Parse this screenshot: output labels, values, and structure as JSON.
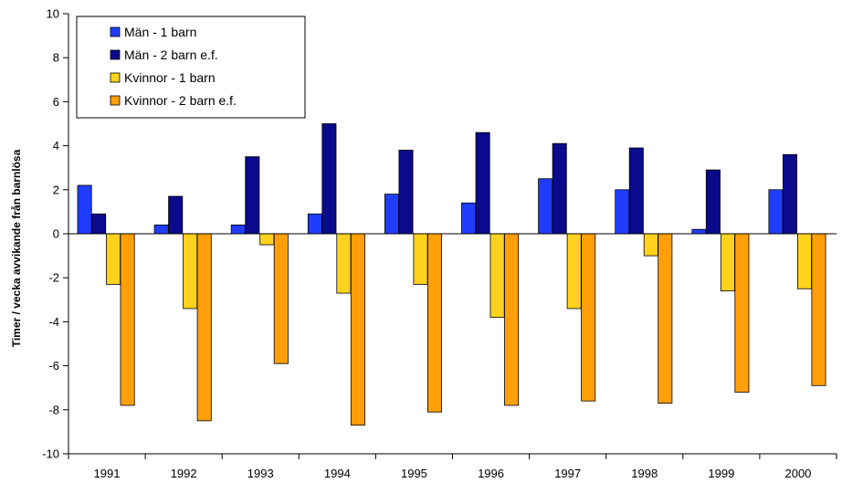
{
  "chart_data": {
    "type": "bar",
    "ylabel": "Timer / vecka avvikande från barnlösa",
    "xlabel": "",
    "ylim": [
      -10,
      10
    ],
    "yticks": [
      10,
      8,
      6,
      4,
      2,
      0,
      -2,
      -4,
      -6,
      -8,
      -10
    ],
    "categories": [
      "1991",
      "1992",
      "1993",
      "1994",
      "1995",
      "1996",
      "1997",
      "1998",
      "1999",
      "2000"
    ],
    "legend_position": "top-left",
    "series": [
      {
        "name": "Män - 1 barn",
        "color": "#1f3cff",
        "values": [
          2.2,
          0.4,
          0.4,
          0.9,
          1.8,
          1.4,
          2.5,
          2.0,
          0.2,
          2.0
        ]
      },
      {
        "name": "Män - 2 barn e.f.",
        "color": "#0a0a8c",
        "values": [
          0.9,
          1.7,
          3.5,
          5.0,
          3.8,
          4.6,
          4.1,
          3.9,
          2.9,
          3.6
        ]
      },
      {
        "name": "Kvinnor - 1 barn",
        "color": "#ffd21e",
        "values": [
          -2.3,
          -3.4,
          -0.5,
          -2.7,
          -2.3,
          -3.8,
          -3.4,
          -1.0,
          -2.6,
          -2.5
        ]
      },
      {
        "name": "Kvinnor - 2 barn e.f.",
        "color": "#ff9f0a",
        "values": [
          -7.8,
          -8.5,
          -5.9,
          -8.7,
          -8.1,
          -7.8,
          -7.6,
          -7.7,
          -7.2,
          -6.9
        ]
      }
    ]
  }
}
